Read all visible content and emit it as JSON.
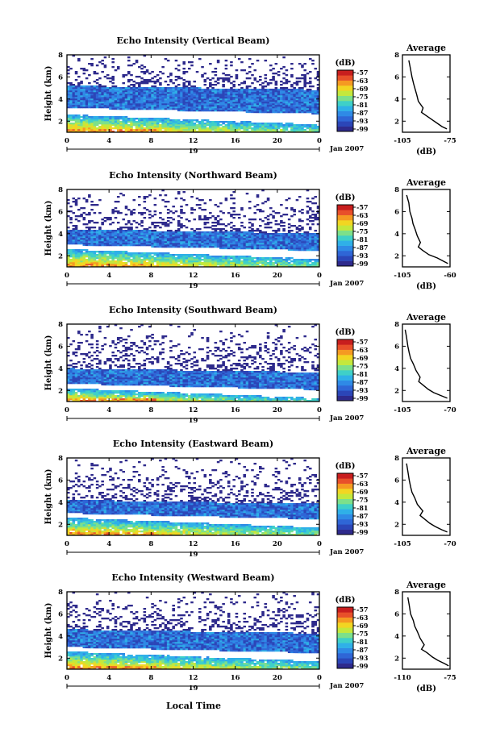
{
  "figure": {
    "x_label": "Local Time",
    "date_label": "Jan 2007",
    "day_label": "19"
  },
  "colorbar": {
    "unit_label": "(dB)",
    "tick_labels": [
      "-57",
      "-63",
      "-69",
      "-75",
      "-81",
      "-87",
      "-93",
      "-99"
    ],
    "colors": [
      "#2e2a8c",
      "#2b46b8",
      "#2f66d6",
      "#2f8ae6",
      "#2fb0e8",
      "#3fd0c8",
      "#7de08a",
      "#c4e83c",
      "#f2d622",
      "#f59a22",
      "#e8502a",
      "#c81e1e"
    ]
  },
  "chart_data": [
    {
      "type": "heatmap",
      "title": "Echo Intensity (Vertical Beam)",
      "ylabel": "Height (km)",
      "xlim": [
        0,
        24
      ],
      "ylim": [
        1,
        8
      ],
      "x_ticks": [
        "0",
        "4",
        "8",
        "12",
        "16",
        "20",
        "0"
      ],
      "y_ticks": [
        "2",
        "4",
        "6",
        "8"
      ],
      "colorbar_range": [
        -99,
        -57
      ],
      "features": {
        "main_layer_km": [
          3.2,
          5.2
        ],
        "lower_layer_top_km": 2.6,
        "echo_top_km": 7.5
      }
    },
    {
      "type": "line",
      "title": "Average",
      "xlabel": "(dB)",
      "x_ticks": [
        "-105",
        "-75"
      ],
      "y_ticks": [
        "2",
        "4",
        "6",
        "8"
      ],
      "xlim": [
        -105,
        -75
      ],
      "ylim": [
        1,
        8
      ],
      "x": [
        -101,
        -100,
        -99,
        -98,
        -97,
        -96,
        -95,
        -92,
        -93,
        -90,
        -86,
        -83,
        -80,
        -77
      ],
      "y": [
        7.5,
        6.8,
        6.0,
        5.4,
        4.9,
        4.4,
        3.8,
        3.2,
        2.8,
        2.5,
        2.1,
        1.8,
        1.5,
        1.3
      ]
    },
    {
      "type": "heatmap",
      "title": "Echo Intensity (Northward Beam)",
      "ylabel": "Height (km)",
      "xlim": [
        0,
        24
      ],
      "ylim": [
        1,
        8
      ],
      "x_ticks": [
        "0",
        "4",
        "8",
        "12",
        "16",
        "20",
        "0"
      ],
      "y_ticks": [
        "2",
        "4",
        "6",
        "8"
      ],
      "colorbar_range": [
        -99,
        -57
      ],
      "features": {
        "main_layer_km": [
          3.0,
          4.4
        ],
        "lower_layer_top_km": 2.6,
        "echo_top_km": 7.5
      }
    },
    {
      "type": "line",
      "title": "Average",
      "xlabel": "(dB)",
      "x_ticks": [
        "-105",
        "-60"
      ],
      "y_ticks": [
        "2",
        "4",
        "6",
        "8"
      ],
      "xlim": [
        -105,
        -60
      ],
      "ylim": [
        1,
        8
      ],
      "x": [
        -101,
        -99,
        -98,
        -96,
        -95,
        -93,
        -91,
        -88,
        -90,
        -86,
        -80,
        -72,
        -66,
        -62
      ],
      "y": [
        7.5,
        6.8,
        6.0,
        5.4,
        4.9,
        4.4,
        3.8,
        3.2,
        2.8,
        2.5,
        2.1,
        1.8,
        1.5,
        1.3
      ]
    },
    {
      "type": "heatmap",
      "title": "Echo Intensity (Southward Beam)",
      "ylabel": "Height (km)",
      "xlim": [
        0,
        24
      ],
      "ylim": [
        1,
        8
      ],
      "x_ticks": [
        "0",
        "4",
        "8",
        "12",
        "16",
        "20",
        "0"
      ],
      "y_ticks": [
        "2",
        "4",
        "6",
        "8"
      ],
      "colorbar_range": [
        -99,
        -57
      ],
      "features": {
        "main_layer_km": [
          2.6,
          4.0
        ],
        "lower_layer_top_km": 2.2,
        "echo_top_km": 7.5
      }
    },
    {
      "type": "line",
      "title": "Average",
      "xlabel": "",
      "x_ticks": [
        "-105",
        "-70"
      ],
      "y_ticks": [
        "2",
        "4",
        "6",
        "8"
      ],
      "xlim": [
        -105,
        -70
      ],
      "ylim": [
        1,
        8
      ],
      "x": [
        -103,
        -102,
        -101,
        -100,
        -99,
        -97,
        -95,
        -92,
        -93,
        -90,
        -86,
        -82,
        -76,
        -72
      ],
      "y": [
        7.5,
        6.8,
        6.0,
        5.4,
        4.9,
        4.4,
        3.8,
        3.2,
        2.8,
        2.5,
        2.1,
        1.8,
        1.5,
        1.3
      ]
    },
    {
      "type": "heatmap",
      "title": "Echo Intensity (Eastward Beam)",
      "ylabel": "Height (km)",
      "xlim": [
        0,
        24
      ],
      "ylim": [
        1,
        8
      ],
      "x_ticks": [
        "0",
        "4",
        "8",
        "12",
        "16",
        "20",
        "0"
      ],
      "y_ticks": [
        "2",
        "4",
        "6",
        "8"
      ],
      "colorbar_range": [
        -99,
        -57
      ],
      "features": {
        "main_layer_km": [
          3.0,
          4.2
        ],
        "lower_layer_top_km": 2.6,
        "echo_top_km": 7.5
      }
    },
    {
      "type": "line",
      "title": "Average",
      "xlabel": "",
      "x_ticks": [
        "-105",
        "-70"
      ],
      "y_ticks": [
        "2",
        "4",
        "6",
        "8"
      ],
      "xlim": [
        -105,
        -70
      ],
      "ylim": [
        1,
        8
      ],
      "x": [
        -102,
        -101,
        -100,
        -99,
        -98,
        -96,
        -94,
        -90,
        -92,
        -89,
        -85,
        -81,
        -76,
        -72
      ],
      "y": [
        7.5,
        6.8,
        6.0,
        5.4,
        4.9,
        4.4,
        3.8,
        3.2,
        2.8,
        2.5,
        2.1,
        1.8,
        1.5,
        1.3
      ]
    },
    {
      "type": "heatmap",
      "title": "Echo Intensity (Westward Beam)",
      "ylabel": "Height (km)",
      "xlim": [
        0,
        24
      ],
      "ylim": [
        1,
        8
      ],
      "x_ticks": [
        "0",
        "4",
        "8",
        "12",
        "16",
        "20",
        "0"
      ],
      "y_ticks": [
        "2",
        "4",
        "6",
        "8"
      ],
      "colorbar_range": [
        -99,
        -57
      ],
      "features": {
        "main_layer_km": [
          3.0,
          4.6
        ],
        "lower_layer_top_km": 2.6,
        "echo_top_km": 7.6
      }
    },
    {
      "type": "line",
      "title": "Average",
      "xlabel": "(dB)",
      "x_ticks": [
        "-110",
        "-75"
      ],
      "y_ticks": [
        "2",
        "4",
        "6",
        "8"
      ],
      "xlim": [
        -110,
        -75
      ],
      "ylim": [
        1,
        8
      ],
      "x": [
        -106,
        -105,
        -104,
        -102,
        -101,
        -99,
        -97,
        -94,
        -96,
        -92,
        -88,
        -84,
        -79,
        -76
      ],
      "y": [
        7.5,
        6.8,
        6.0,
        5.4,
        4.9,
        4.4,
        3.8,
        3.2,
        2.8,
        2.5,
        2.1,
        1.8,
        1.5,
        1.3
      ]
    }
  ]
}
